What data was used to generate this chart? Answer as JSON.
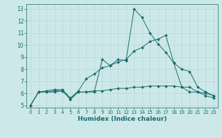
{
  "xlabel": "Humidex (Indice chaleur)",
  "bg_color": "#cce8e8",
  "grid_color": "#b8d8d8",
  "line_color": "#1a6b6b",
  "xlim": [
    -0.5,
    23.5
  ],
  "ylim": [
    4.8,
    13.4
  ],
  "yticks": [
    5,
    6,
    7,
    8,
    9,
    10,
    11,
    12,
    13
  ],
  "xticks": [
    0,
    1,
    2,
    3,
    4,
    5,
    6,
    7,
    8,
    9,
    10,
    11,
    12,
    13,
    14,
    15,
    16,
    17,
    18,
    19,
    20,
    21,
    22,
    23
  ],
  "line1_x": [
    0,
    1,
    2,
    3,
    4,
    5,
    6,
    7,
    8,
    9,
    10,
    11,
    12,
    13,
    14,
    15,
    16,
    17,
    18,
    19,
    20,
    21,
    22,
    23
  ],
  "line1_y": [
    5.0,
    6.1,
    6.1,
    6.1,
    6.2,
    5.5,
    6.1,
    6.1,
    6.1,
    8.8,
    8.3,
    8.8,
    8.7,
    13.0,
    12.3,
    11.0,
    10.1,
    9.4,
    8.5,
    6.5,
    6.1,
    6.1,
    5.8,
    5.6
  ],
  "line2_x": [
    0,
    1,
    2,
    3,
    4,
    5,
    6,
    7,
    8,
    9,
    10,
    11,
    12,
    13,
    14,
    15,
    16,
    17,
    18,
    19,
    20,
    21,
    22,
    23
  ],
  "line2_y": [
    5.0,
    6.1,
    6.2,
    6.3,
    6.3,
    5.6,
    6.2,
    7.2,
    7.6,
    8.1,
    8.3,
    8.6,
    8.8,
    9.5,
    9.8,
    10.3,
    10.5,
    10.8,
    8.5,
    8.0,
    7.8,
    6.5,
    6.1,
    5.8
  ],
  "line3_x": [
    0,
    1,
    2,
    3,
    4,
    5,
    6,
    7,
    8,
    9,
    10,
    11,
    12,
    13,
    14,
    15,
    16,
    17,
    18,
    19,
    20,
    21,
    22,
    23
  ],
  "line3_y": [
    5.0,
    6.1,
    6.1,
    6.2,
    6.2,
    5.5,
    6.1,
    6.1,
    6.2,
    6.2,
    6.3,
    6.4,
    6.4,
    6.5,
    6.5,
    6.6,
    6.6,
    6.6,
    6.6,
    6.5,
    6.5,
    6.1,
    6.0,
    5.8
  ],
  "tick_fontsize": 5,
  "xlabel_fontsize": 6.5
}
